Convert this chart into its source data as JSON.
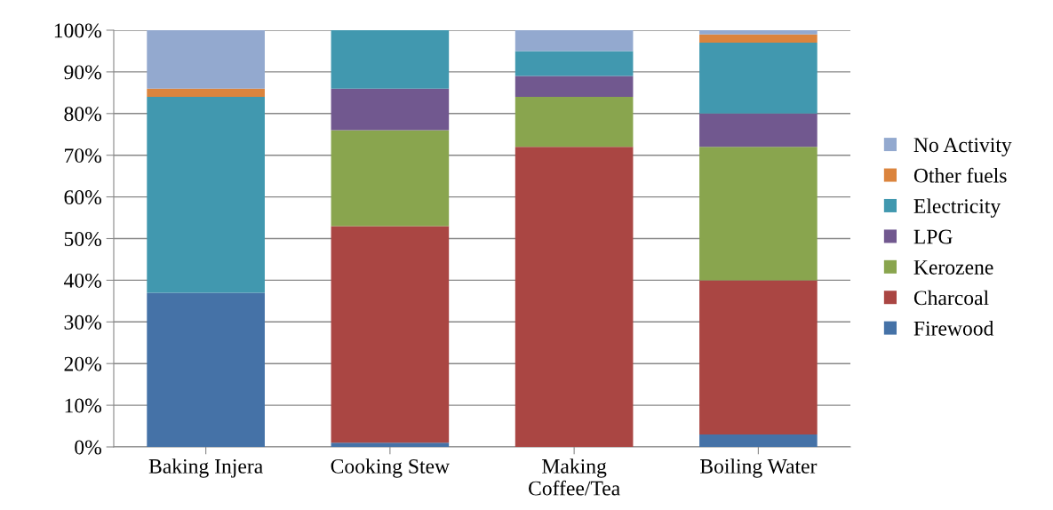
{
  "chart_data": {
    "type": "bar",
    "stacked": true,
    "categories": [
      "Baking Injera",
      "Cooking Stew",
      "Making\nCoffee/Tea",
      "Boiling Water"
    ],
    "series": [
      {
        "name": "Firewood",
        "color": "#4572a7",
        "values": [
          37,
          1,
          0,
          3
        ]
      },
      {
        "name": "Charcoal",
        "color": "#aa4643",
        "values": [
          0,
          52,
          72,
          37
        ]
      },
      {
        "name": "Kerozene",
        "color": "#89a54e",
        "values": [
          0,
          23,
          12,
          32
        ]
      },
      {
        "name": "LPG",
        "color": "#71588f",
        "values": [
          0,
          10,
          5,
          8
        ]
      },
      {
        "name": "Electricity",
        "color": "#4198af",
        "values": [
          47,
          14,
          6,
          17
        ]
      },
      {
        "name": "Other fuels",
        "color": "#db843d",
        "values": [
          2,
          0,
          0,
          2
        ]
      },
      {
        "name": "No Activity",
        "color": "#93a9cf",
        "values": [
          14,
          0,
          5,
          1
        ]
      }
    ],
    "ylim": [
      0,
      100
    ],
    "yticks": [
      {
        "value": 0,
        "label": "0%"
      },
      {
        "value": 10,
        "label": "10%"
      },
      {
        "value": 20,
        "label": "20%"
      },
      {
        "value": 30,
        "label": "30%"
      },
      {
        "value": 40,
        "label": "40%"
      },
      {
        "value": 50,
        "label": "50%"
      },
      {
        "value": 60,
        "label": "60%"
      },
      {
        "value": 70,
        "label": "70%"
      },
      {
        "value": 80,
        "label": "80%"
      },
      {
        "value": 90,
        "label": "90%"
      },
      {
        "value": 100,
        "label": "100%"
      }
    ],
    "grid": "y",
    "legend": "right"
  }
}
